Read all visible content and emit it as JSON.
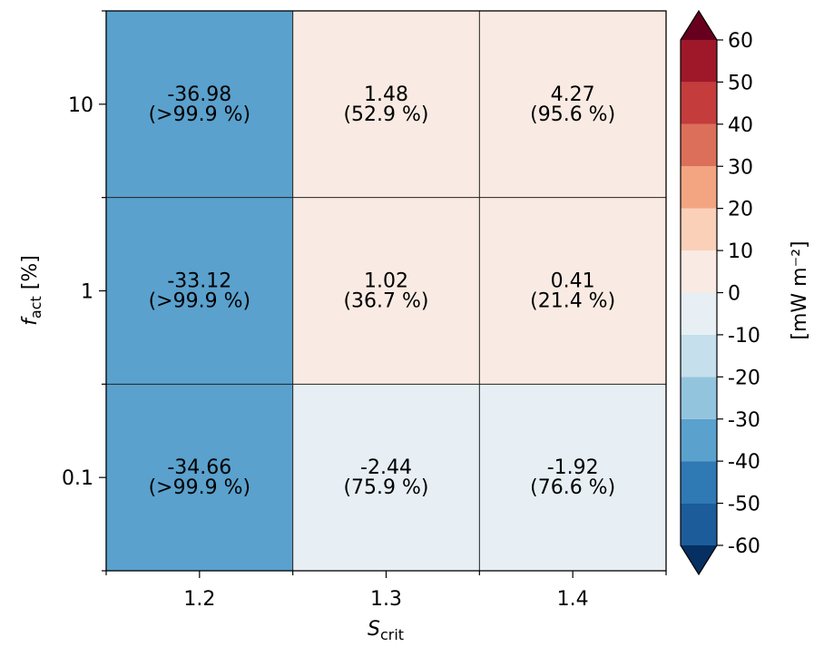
{
  "chart_data": {
    "type": "heatmap",
    "title_fragment": "",
    "xlabel_main": "S",
    "xlabel_sub": "crit",
    "ylabel_main": "f",
    "ylabel_sub": "act",
    "ylabel_suffix": " [%]",
    "x_categories": [
      "1.2",
      "1.3",
      "1.4"
    ],
    "y_categories": [
      "0.1",
      "1",
      "10"
    ],
    "cells": [
      [
        {
          "value": -34.66,
          "label": "-34.66",
          "sub": "(>99.9 %)"
        },
        {
          "value": -2.44,
          "label": "-2.44",
          "sub": "(75.9 %)"
        },
        {
          "value": -1.92,
          "label": "-1.92",
          "sub": "(76.6 %)"
        }
      ],
      [
        {
          "value": -33.12,
          "label": "-33.12",
          "sub": "(>99.9 %)"
        },
        {
          "value": 1.02,
          "label": "1.02",
          "sub": "(36.7 %)"
        },
        {
          "value": 0.41,
          "label": "0.41",
          "sub": "(21.4 %)"
        }
      ],
      [
        {
          "value": -36.98,
          "label": "-36.98",
          "sub": "(>99.9 %)"
        },
        {
          "value": 1.48,
          "label": "1.48",
          "sub": "(52.9 %)"
        },
        {
          "value": 4.27,
          "label": "4.27",
          "sub": "(95.6 %)"
        }
      ]
    ],
    "colorbar": {
      "label": "[mW m⁻²]",
      "ticks": [
        "60",
        "50",
        "40",
        "30",
        "20",
        "10",
        "0",
        "-10",
        "-20",
        "-30",
        "-40",
        "-50",
        "-60"
      ],
      "levels": [
        -60,
        -50,
        -40,
        -30,
        -20,
        -10,
        0,
        10,
        20,
        30,
        40,
        50,
        60
      ],
      "colors": [
        "#1c5c9a",
        "#2f79b5",
        "#5aa1cd",
        "#93c4de",
        "#c5dfec",
        "#e7eff4",
        "#f9ebe3",
        "#fbd0b9",
        "#f3a582",
        "#dc6f59",
        "#c43c3c",
        "#9f1829"
      ],
      "under_color": "#053061",
      "over_color": "#67001f",
      "extend": "both"
    }
  }
}
